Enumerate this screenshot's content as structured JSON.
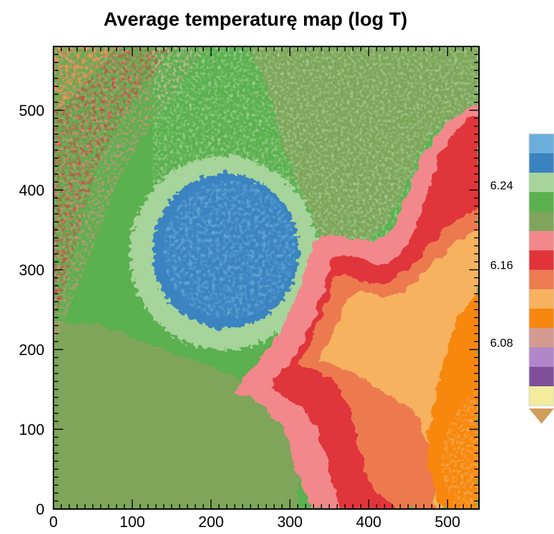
{
  "chart_data": {
    "type": "heatmap",
    "title": "Average temperaturę map (log T)",
    "xlabel": "",
    "ylabel": "",
    "xlim": [
      0,
      540
    ],
    "ylim": [
      0,
      580
    ],
    "x_ticks": [
      0,
      100,
      200,
      300,
      400,
      500
    ],
    "y_ticks": [
      0,
      100,
      200,
      300,
      400,
      500
    ],
    "grid": false,
    "colorbar": {
      "position": "right",
      "tick_labels": [
        "6.24",
        "6.16",
        "6.08"
      ],
      "tick_values": [
        6.24,
        6.16,
        6.08
      ],
      "levels_high_to_low": [
        {
          "color": "#6aaedb"
        },
        {
          "color": "#3a83c1"
        },
        {
          "color": "#a6d49a"
        },
        {
          "color": "#5bb04f"
        },
        {
          "color": "#7ea55a"
        },
        {
          "color": "#f2888c"
        },
        {
          "color": "#e0343a"
        },
        {
          "color": "#ed7a50"
        },
        {
          "color": "#f6b25e"
        },
        {
          "color": "#f7870f"
        },
        {
          "color": "#d39a90"
        },
        {
          "color": "#b187c9"
        },
        {
          "color": "#7f4f9a"
        },
        {
          "color": "#f2ec9c"
        }
      ],
      "under_color": "#d29c5b"
    },
    "regions": [
      {
        "feature": "background",
        "level_color": "#5bb04f",
        "approx_log_t": 6.22
      },
      {
        "feature": "lower-left olive region",
        "level_color": "#7ea55a",
        "approx_log_t": 6.2
      },
      {
        "feature": "upper-right olive region",
        "level_color": "#7ea55a",
        "approx_log_t": 6.2
      },
      {
        "feature": "upper-left noisy hot region",
        "level_color": "#e0343a",
        "approx_log_t": 6.16
      },
      {
        "feature": "light green halo around blob",
        "level_color": "#a6d49a",
        "approx_log_t": 6.24
      },
      {
        "feature": "cool blob centered near (230, 310)",
        "level_color": "#3a83c1",
        "approx_log_t": 6.28
      },
      {
        "feature": "pink band",
        "level_color": "#f2888c",
        "approx_log_t": 6.18
      },
      {
        "feature": "red band",
        "level_color": "#e0343a",
        "approx_log_t": 6.16
      },
      {
        "feature": "coral region",
        "level_color": "#ed7a50",
        "approx_log_t": 6.14
      },
      {
        "feature": "light orange region",
        "level_color": "#f6b25e",
        "approx_log_t": 6.12
      },
      {
        "feature": "orange region lower right",
        "level_color": "#f7870f",
        "approx_log_t": 6.1
      }
    ]
  }
}
